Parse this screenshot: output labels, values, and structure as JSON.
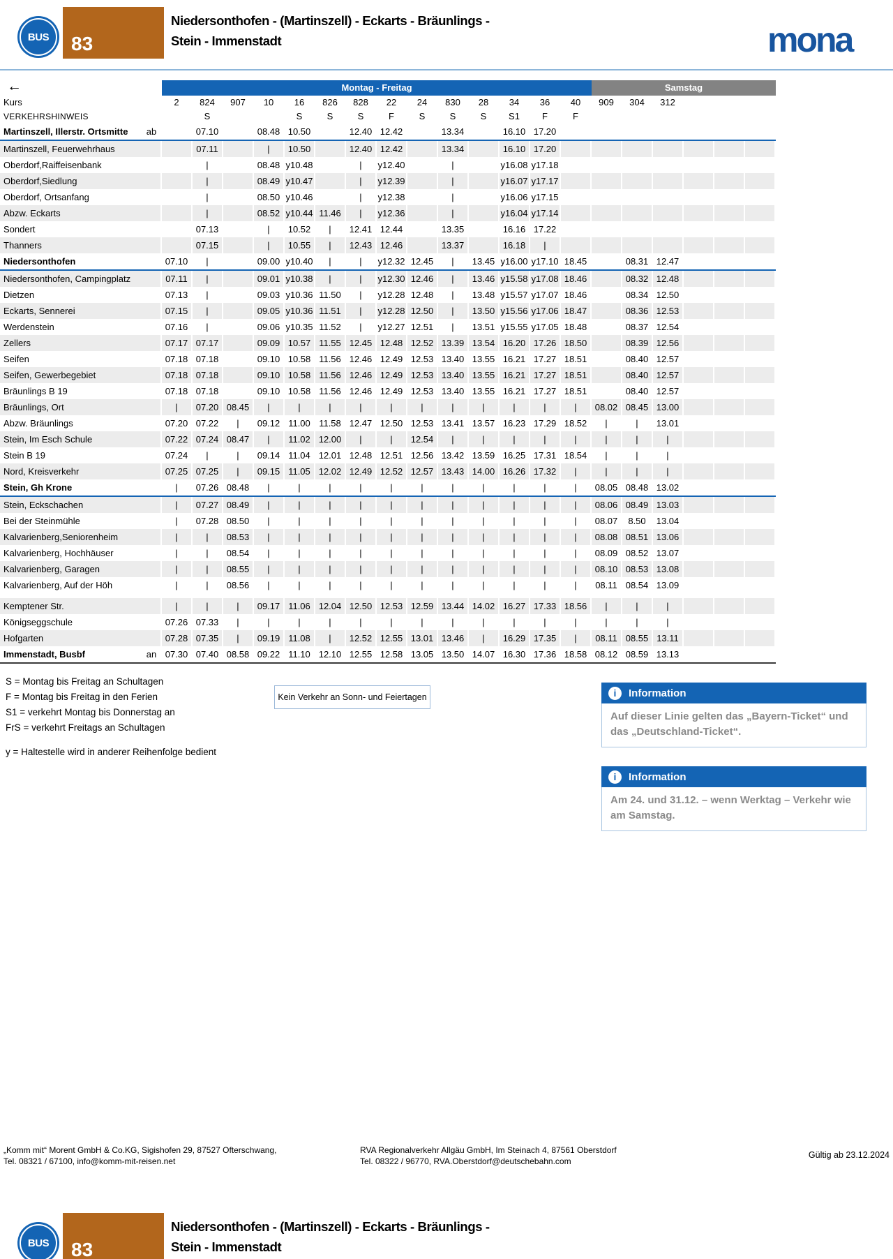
{
  "page": {
    "bus_badge": "BUS",
    "line_number": "83",
    "title_line1": "Niedersonthofen - (Martinszell) - Eckarts - Bräunlings -",
    "title_line2": "Stein - Immenstadt",
    "brand_logo": "mona",
    "valid_from": "Gültig ab 23.12.2024"
  },
  "timetable": {
    "back_arrow": "←",
    "day_groups": [
      {
        "label": "Montag - Freitag"
      },
      {
        "label": "Samstag"
      }
    ],
    "kurs_label": "Kurs",
    "kurs": [
      "2",
      "824",
      "907",
      "10",
      "16",
      "826",
      "828",
      "22",
      "24",
      "830",
      "28",
      "34",
      "36",
      "40",
      "909",
      "304",
      "312"
    ],
    "hinweis_label": "VERKEHRSHINWEIS",
    "hinweis": [
      "",
      "S",
      "",
      "",
      "S",
      "S",
      "S",
      "F",
      "S",
      "S",
      "S",
      "S1",
      "F",
      "F",
      "",
      "",
      ""
    ],
    "rows": [
      {
        "name": "Martinszell, Illerstr. Ortsmitte",
        "marker": "ab",
        "bold": true,
        "sep": "blue",
        "times": [
          "",
          "07.10",
          "",
          "08.48",
          "10.50",
          "",
          "12.40",
          "12.42",
          "",
          "13.34",
          "",
          "16.10",
          "17.20",
          "",
          "",
          "",
          ""
        ]
      },
      {
        "name": "Martinszell, Feuerwehrhaus",
        "times": [
          "",
          "07.11",
          "",
          "|",
          "10.50",
          "",
          "12.40",
          "12.42",
          "",
          "13.34",
          "",
          "16.10",
          "17.20",
          "",
          "",
          "",
          ""
        ]
      },
      {
        "name": "Oberdorf,Raiffeisenbank",
        "times": [
          "",
          "|",
          "",
          "08.48",
          "y10.48",
          "",
          "|",
          "y12.40",
          "",
          "|",
          "",
          "y16.08",
          "y17.18",
          "",
          "",
          "",
          ""
        ]
      },
      {
        "name": "Oberdorf,Siedlung",
        "times": [
          "",
          "|",
          "",
          "08.49",
          "y10.47",
          "",
          "|",
          "y12.39",
          "",
          "|",
          "",
          "y16.07",
          "y17.17",
          "",
          "",
          "",
          ""
        ]
      },
      {
        "name": "Oberdorf, Ortsanfang",
        "times": [
          "",
          "|",
          "",
          "08.50",
          "y10.46",
          "",
          "|",
          "y12.38",
          "",
          "|",
          "",
          "y16.06",
          "y17.15",
          "",
          "",
          "",
          ""
        ]
      },
      {
        "name": "Abzw. Eckarts",
        "times": [
          "",
          "|",
          "",
          "08.52",
          "y10.44",
          "11.46",
          "|",
          "y12.36",
          "",
          "|",
          "",
          "y16.04",
          "y17.14",
          "",
          "",
          "",
          ""
        ]
      },
      {
        "name": "Sondert",
        "times": [
          "",
          "07.13",
          "",
          "|",
          "10.52",
          "|",
          "12.41",
          "12.44",
          "",
          "13.35",
          "",
          "16.16",
          "17.22",
          "",
          "",
          "",
          ""
        ]
      },
      {
        "name": "Thanners",
        "times": [
          "",
          "07.15",
          "",
          "|",
          "10.55",
          "|",
          "12.43",
          "12.46",
          "",
          "13.37",
          "",
          "16.18",
          "|",
          "",
          "",
          "",
          ""
        ]
      },
      {
        "name": "Niedersonthofen",
        "bold": true,
        "sep": "blue",
        "times": [
          "07.10",
          "|",
          "",
          "09.00",
          "y10.40",
          "|",
          "|",
          "y12.32",
          "12.45",
          "|",
          "13.45",
          "y16.00",
          "y17.10",
          "18.45",
          "",
          "08.31",
          "12.47"
        ]
      },
      {
        "name": "Niedersonthofen, Campingplatz",
        "times": [
          "07.11",
          "|",
          "",
          "09.01",
          "y10.38",
          "|",
          "|",
          "y12.30",
          "12.46",
          "|",
          "13.46",
          "y15.58",
          "y17.08",
          "18.46",
          "",
          "08.32",
          "12.48"
        ]
      },
      {
        "name": "Dietzen",
        "times": [
          "07.13",
          "|",
          "",
          "09.03",
          "y10.36",
          "11.50",
          "|",
          "y12.28",
          "12.48",
          "|",
          "13.48",
          "y15.57",
          "y17.07",
          "18.46",
          "",
          "08.34",
          "12.50"
        ]
      },
      {
        "name": "Eckarts, Sennerei",
        "times": [
          "07.15",
          "|",
          "",
          "09.05",
          "y10.36",
          "11.51",
          "|",
          "y12.28",
          "12.50",
          "|",
          "13.50",
          "y15.56",
          "y17.06",
          "18.47",
          "",
          "08.36",
          "12.53"
        ]
      },
      {
        "name": "Werdenstein",
        "times": [
          "07.16",
          "|",
          "",
          "09.06",
          "y10.35",
          "11.52",
          "|",
          "y12.27",
          "12.51",
          "|",
          "13.51",
          "y15.55",
          "y17.05",
          "18.48",
          "",
          "08.37",
          "12.54"
        ]
      },
      {
        "name": "Zellers",
        "times": [
          "07.17",
          "07.17",
          "",
          "09.09",
          "10.57",
          "11.55",
          "12.45",
          "12.48",
          "12.52",
          "13.39",
          "13.54",
          "16.20",
          "17.26",
          "18.50",
          "",
          "08.39",
          "12.56"
        ]
      },
      {
        "name": "Seifen",
        "times": [
          "07.18",
          "07.18",
          "",
          "09.10",
          "10.58",
          "11.56",
          "12.46",
          "12.49",
          "12.53",
          "13.40",
          "13.55",
          "16.21",
          "17.27",
          "18.51",
          "",
          "08.40",
          "12.57"
        ]
      },
      {
        "name": "Seifen, Gewerbegebiet",
        "times": [
          "07.18",
          "07.18",
          "",
          "09.10",
          "10.58",
          "11.56",
          "12.46",
          "12.49",
          "12.53",
          "13.40",
          "13.55",
          "16.21",
          "17.27",
          "18.51",
          "",
          "08.40",
          "12.57"
        ]
      },
      {
        "name": "Bräunlings B 19",
        "times": [
          "07.18",
          "07.18",
          "",
          "09.10",
          "10.58",
          "11.56",
          "12.46",
          "12.49",
          "12.53",
          "13.40",
          "13.55",
          "16.21",
          "17.27",
          "18.51",
          "",
          "08.40",
          "12.57"
        ]
      },
      {
        "name": "Bräunlings, Ort",
        "times": [
          "|",
          "07.20",
          "08.45",
          "|",
          "|",
          "|",
          "|",
          "|",
          "|",
          "|",
          "|",
          "|",
          "|",
          "|",
          "08.02",
          "08.45",
          "13.00"
        ]
      },
      {
        "name": "Abzw. Bräunlings",
        "times": [
          "07.20",
          "07.22",
          "|",
          "09.12",
          "11.00",
          "11.58",
          "12.47",
          "12.50",
          "12.53",
          "13.41",
          "13.57",
          "16.23",
          "17.29",
          "18.52",
          "|",
          "|",
          "13.01"
        ]
      },
      {
        "name": "Stein, Im Esch Schule",
        "times": [
          "07.22",
          "07.24",
          "08.47",
          "|",
          "11.02",
          "12.00",
          "|",
          "|",
          "12.54",
          "|",
          "|",
          "|",
          "|",
          "|",
          "|",
          "|",
          "|"
        ]
      },
      {
        "name": "Stein B 19",
        "times": [
          "07.24",
          "|",
          "|",
          "09.14",
          "11.04",
          "12.01",
          "12.48",
          "12.51",
          "12.56",
          "13.42",
          "13.59",
          "16.25",
          "17.31",
          "18.54",
          "|",
          "|",
          "|"
        ]
      },
      {
        "name": "Nord, Kreisverkehr",
        "times": [
          "07.25",
          "07.25",
          "|",
          "09.15",
          "11.05",
          "12.02",
          "12.49",
          "12.52",
          "12.57",
          "13.43",
          "14.00",
          "16.26",
          "17.32",
          "|",
          "|",
          "|",
          "|"
        ]
      },
      {
        "name": "Stein, Gh Krone",
        "bold": true,
        "sep": "blue",
        "times": [
          "|",
          "07.26",
          "08.48",
          "|",
          "|",
          "|",
          "|",
          "|",
          "|",
          "|",
          "|",
          "|",
          "|",
          "|",
          "08.05",
          "08.48",
          "13.02"
        ]
      },
      {
        "name": "Stein, Eckschachen",
        "times": [
          "|",
          "07.27",
          "08.49",
          "|",
          "|",
          "|",
          "|",
          "|",
          "|",
          "|",
          "|",
          "|",
          "|",
          "|",
          "08.06",
          "08.49",
          "13.03"
        ]
      },
      {
        "name": "Bei der Steinmühle",
        "times": [
          "|",
          "07.28",
          "08.50",
          "|",
          "|",
          "|",
          "|",
          "|",
          "|",
          "|",
          "|",
          "|",
          "|",
          "|",
          "08.07",
          "8.50",
          "13.04"
        ]
      },
      {
        "name": "Kalvarienberg,Seniorenheim",
        "times": [
          "|",
          "|",
          "08.53",
          "|",
          "|",
          "|",
          "|",
          "|",
          "|",
          "|",
          "|",
          "|",
          "|",
          "|",
          "08.08",
          "08.51",
          "13.06"
        ]
      },
      {
        "name": "Kalvarienberg, Hochhäuser",
        "times": [
          "|",
          "|",
          "08.54",
          "|",
          "|",
          "|",
          "|",
          "|",
          "|",
          "|",
          "|",
          "|",
          "|",
          "|",
          "08.09",
          "08.52",
          "13.07"
        ]
      },
      {
        "name": "Kalvarienberg, Garagen",
        "times": [
          "|",
          "|",
          "08.55",
          "|",
          "|",
          "|",
          "|",
          "|",
          "|",
          "|",
          "|",
          "|",
          "|",
          "|",
          "08.10",
          "08.53",
          "13.08"
        ]
      },
      {
        "name": "Kalvarienberg, Auf der Höh",
        "times": [
          "|",
          "|",
          "08.56",
          "|",
          "|",
          "|",
          "|",
          "|",
          "|",
          "|",
          "|",
          "|",
          "|",
          "|",
          "08.11",
          "08.54",
          "13.09"
        ]
      },
      {
        "name": "Kemptener Str.",
        "gap_before": true,
        "times": [
          "|",
          "|",
          "|",
          "09.17",
          "11.06",
          "12.04",
          "12.50",
          "12.53",
          "12.59",
          "13.44",
          "14.02",
          "16.27",
          "17.33",
          "18.56",
          "|",
          "|",
          "|"
        ]
      },
      {
        "name": "Königseggschule",
        "times": [
          "07.26",
          "07.33",
          "|",
          "|",
          "|",
          "|",
          "|",
          "|",
          "|",
          "|",
          "|",
          "|",
          "|",
          "|",
          "|",
          "|",
          "|"
        ]
      },
      {
        "name": "Hofgarten",
        "times": [
          "07.28",
          "07.35",
          "|",
          "09.19",
          "11.08",
          "|",
          "12.52",
          "12.55",
          "13.01",
          "13.46",
          "|",
          "16.29",
          "17.35",
          "|",
          "08.11",
          "08.55",
          "13.11"
        ]
      },
      {
        "name": "Immenstadt, Busbf",
        "marker": "an",
        "bold": true,
        "sep": "dark",
        "times": [
          "07.30",
          "07.40",
          "08.58",
          "09.22",
          "11.10",
          "12.10",
          "12.55",
          "12.58",
          "13.05",
          "13.50",
          "14.07",
          "16.30",
          "17.36",
          "18.58",
          "08.12",
          "08.59",
          "13.13"
        ]
      }
    ]
  },
  "legend": {
    "lines": [
      "S = Montag bis Freitag an Schultagen",
      "F = Montag bis Freitag in den Ferien",
      "S1 = verkehrt Montag bis Donnerstag an",
      "FrS = verkehrt Freitags an Schultagen"
    ],
    "y_note": "y = Haltestelle wird in anderer Reihenfolge bedient"
  },
  "notice_box": "Kein Verkehr an Sonn- und Feiertagen",
  "info_boxes": [
    {
      "icon": "i",
      "title": "Information",
      "text": "Auf dieser Linie gelten das „Bayern-Ticket“ und das „Deutschland-Ticket“."
    },
    {
      "icon": "i",
      "title": "Information",
      "text": "Am 24. und 31.12. – wenn Werktag – Verkehr wie am Samstag."
    }
  ],
  "footer": {
    "operator1_line1": "„Komm mit“ Morent GmbH & Co.KG, Sigishofen 29, 87527 Ofterschwang,",
    "operator1_line2": "Tel. 08321 / 67100, info@komm-mit-reisen.net",
    "operator2_line1": "RVA Regionalverkehr Allgäu GmbH, Im Steinach 4, 87561 Oberstdorf",
    "operator2_line2": "Tel. 08322 / 96770, RVA.Oberstdorf@deutschebahn.com"
  },
  "colors": {
    "blue": "#1464b4",
    "samstag_gray": "#838383",
    "line_orange": "#b2661c",
    "row_stripe": "#ececec",
    "info_text_gray": "#8a8a8a"
  }
}
